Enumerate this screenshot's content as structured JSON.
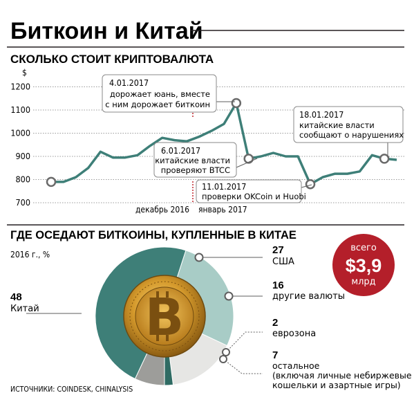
{
  "title": "Биткоин и Китай",
  "line_section": {
    "heading": "СКОЛЬКО СТОИТ КРИПТОВАЛЮТА",
    "y_unit": "$",
    "months": [
      "декабрь 2016",
      "январь 2017"
    ],
    "callouts": [
      {
        "date": "4.01.2017",
        "lines": [
          "дорожает юань, вместе",
          "с ним дорожает биткоин"
        ]
      },
      {
        "date": "6.01.2017",
        "lines": [
          "китайские власти",
          "проверяют BTCC"
        ]
      },
      {
        "date": "11.01.2017",
        "lines": [
          "проверки OKCoin и Huobi"
        ]
      },
      {
        "date": "18.01.2017",
        "lines": [
          "китайские власти",
          "сообщают о нарушениях"
        ]
      }
    ]
  },
  "chart_data": [
    {
      "type": "line",
      "title": "СКОЛЬКО СТОИТ КРИПТОВАЛЮТА",
      "ylabel": "$",
      "xlabel": "",
      "ylim": [
        700,
        1250
      ],
      "yticks": [
        700,
        800,
        900,
        1000,
        1100,
        1200
      ],
      "x_labels": [
        "декабрь 2016",
        "январь 2017"
      ],
      "grid": true,
      "color": "#3e7f78",
      "series": [
        {
          "values": [
            790,
            790,
            810,
            850,
            920,
            895,
            895,
            905,
            945,
            980,
            970,
            965,
            985,
            1010,
            1040,
            1130,
            890,
            900,
            915,
            900,
            900,
            780,
            810,
            825,
            825,
            835,
            905,
            890,
            885
          ]
        }
      ],
      "highlighted_points": [
        0,
        15,
        16,
        21,
        27
      ]
    },
    {
      "type": "pie",
      "title": "ГДЕ ОСЕДАЮТ БИТКОИНЫ, КУПЛЕННЫЕ В КИТАЕ",
      "subtitle": "2016 г., %",
      "total_label": "всего",
      "total_value": "$3,9",
      "total_unit": "млрд",
      "slices": [
        {
          "value": "27",
          "label": "США",
          "color": "#a8ccc6"
        },
        {
          "value": "16",
          "label": "другие валюты",
          "color": "#e6e6e4"
        },
        {
          "value": "2",
          "label": "еврозона",
          "color": "#2f6b63"
        },
        {
          "value": "7",
          "label": "остальное",
          "label2": "(включая личные небиржевые",
          "label3": "кошельки и азартные игры)",
          "color": "#9d9d9a"
        },
        {
          "value": "48",
          "label": "Китай",
          "color": "#3e7f78"
        }
      ]
    }
  ],
  "source": "ИСТОЧНИКИ: COINDESK, CHINALYSIS"
}
